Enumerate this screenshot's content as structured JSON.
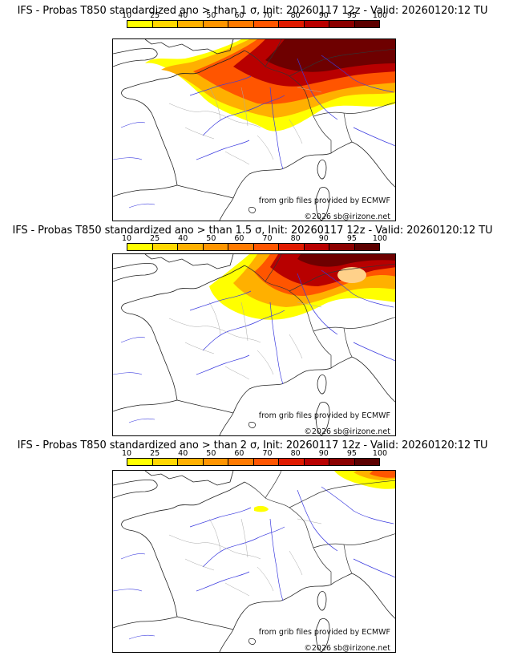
{
  "panels": [
    {
      "title": "IFS - Probas T850  standardized ano > than 1 σ, Init: 20260117 12z - Valid: 20260120:12 TU"
    },
    {
      "title": "IFS - Probas T850  standardized ano > than 1.5 σ, Init: 20260117 12z - Valid: 20260120:12 TU"
    },
    {
      "title": "IFS - Probas T850  standardized ano > than 2 σ, Init: 20260117 12z - Valid: 20260120:12 TU"
    }
  ],
  "scale": {
    "labels": [
      "10",
      "25",
      "40",
      "50",
      "60",
      "70",
      "80",
      "90",
      "95",
      "100"
    ],
    "colors": [
      "#ffff00",
      "#ffd700",
      "#ffb000",
      "#ff9500",
      "#ff7a00",
      "#ff5500",
      "#e01a00",
      "#b80000",
      "#8b0000",
      "#5c0000"
    ]
  },
  "credits": {
    "source": "from grib files provided by ECMWF",
    "copyright": "©2026 sb@irizone.net"
  }
}
